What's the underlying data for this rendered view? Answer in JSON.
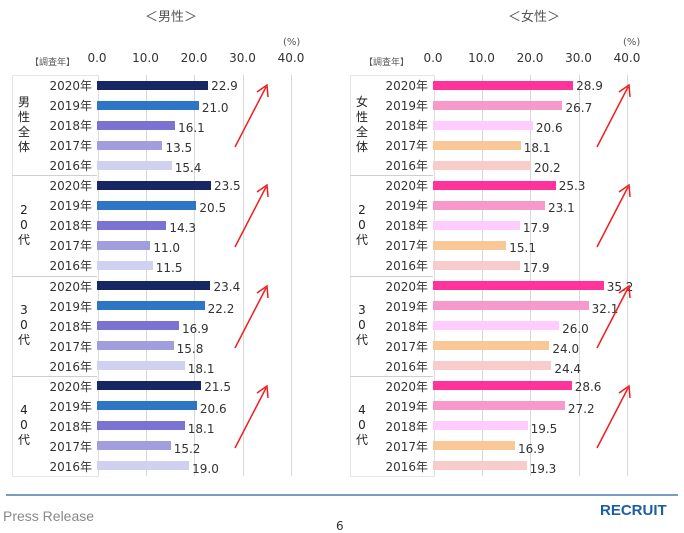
{
  "footer": {
    "left": "Press Release",
    "page": "6",
    "logo": "RECRUIT"
  },
  "chart_data": [
    {
      "type": "bar",
      "orientation": "horizontal",
      "title": "＜男性＞",
      "unit": "(%)",
      "row_header": "【調査年】",
      "xlim": [
        0,
        40
      ],
      "ticks": [
        "0.0",
        "10.0",
        "20.0",
        "30.0",
        "40.0"
      ],
      "grid": true,
      "groups": [
        {
          "label": "男性全体",
          "years": [
            "2020年",
            "2019年",
            "2018年",
            "2017年",
            "2016年"
          ],
          "values": [
            22.9,
            21.0,
            16.1,
            13.5,
            15.4
          ]
        },
        {
          "label": "20代",
          "years": [
            "2020年",
            "2019年",
            "2018年",
            "2017年",
            "2016年"
          ],
          "values": [
            23.5,
            20.5,
            14.3,
            11.0,
            11.5
          ]
        },
        {
          "label": "30代",
          "years": [
            "2020年",
            "2019年",
            "2018年",
            "2017年",
            "2016年"
          ],
          "values": [
            23.4,
            22.2,
            16.9,
            15.8,
            18.1
          ]
        },
        {
          "label": "40代",
          "years": [
            "2020年",
            "2019年",
            "2018年",
            "2017年",
            "2016年"
          ],
          "values": [
            21.5,
            20.6,
            18.1,
            15.2,
            19.0
          ]
        }
      ],
      "colors": [
        "#172763",
        "#2E75C6",
        "#7B73D1",
        "#A09EDD",
        "#D0D0F0"
      ],
      "arrow_color": "#F01E1E"
    },
    {
      "type": "bar",
      "orientation": "horizontal",
      "title": "＜女性＞",
      "unit": "(%)",
      "row_header": "【調査年】",
      "xlim": [
        0,
        40
      ],
      "ticks": [
        "0.0",
        "10.0",
        "20.0",
        "30.0",
        "40.0"
      ],
      "grid": true,
      "groups": [
        {
          "label": "女性全体",
          "years": [
            "2020年",
            "2019年",
            "2018年",
            "2017年",
            "2016年"
          ],
          "values": [
            28.9,
            26.7,
            20.6,
            18.1,
            20.2
          ]
        },
        {
          "label": "20代",
          "years": [
            "2020年",
            "2019年",
            "2018年",
            "2017年",
            "2016年"
          ],
          "values": [
            25.3,
            23.1,
            17.9,
            15.1,
            17.9
          ]
        },
        {
          "label": "30代",
          "years": [
            "2020年",
            "2019年",
            "2018年",
            "2017年",
            "2016年"
          ],
          "values": [
            35.2,
            32.1,
            26.0,
            24.0,
            24.4
          ]
        },
        {
          "label": "40代",
          "years": [
            "2020年",
            "2019年",
            "2018年",
            "2017年",
            "2016年"
          ],
          "values": [
            28.6,
            27.2,
            19.5,
            16.9,
            19.3
          ]
        }
      ],
      "colors": [
        "#FF3399",
        "#F799CB",
        "#FFCCFF",
        "#F9C896",
        "#F9CCCC"
      ],
      "arrow_color": "#F01E1E"
    }
  ]
}
